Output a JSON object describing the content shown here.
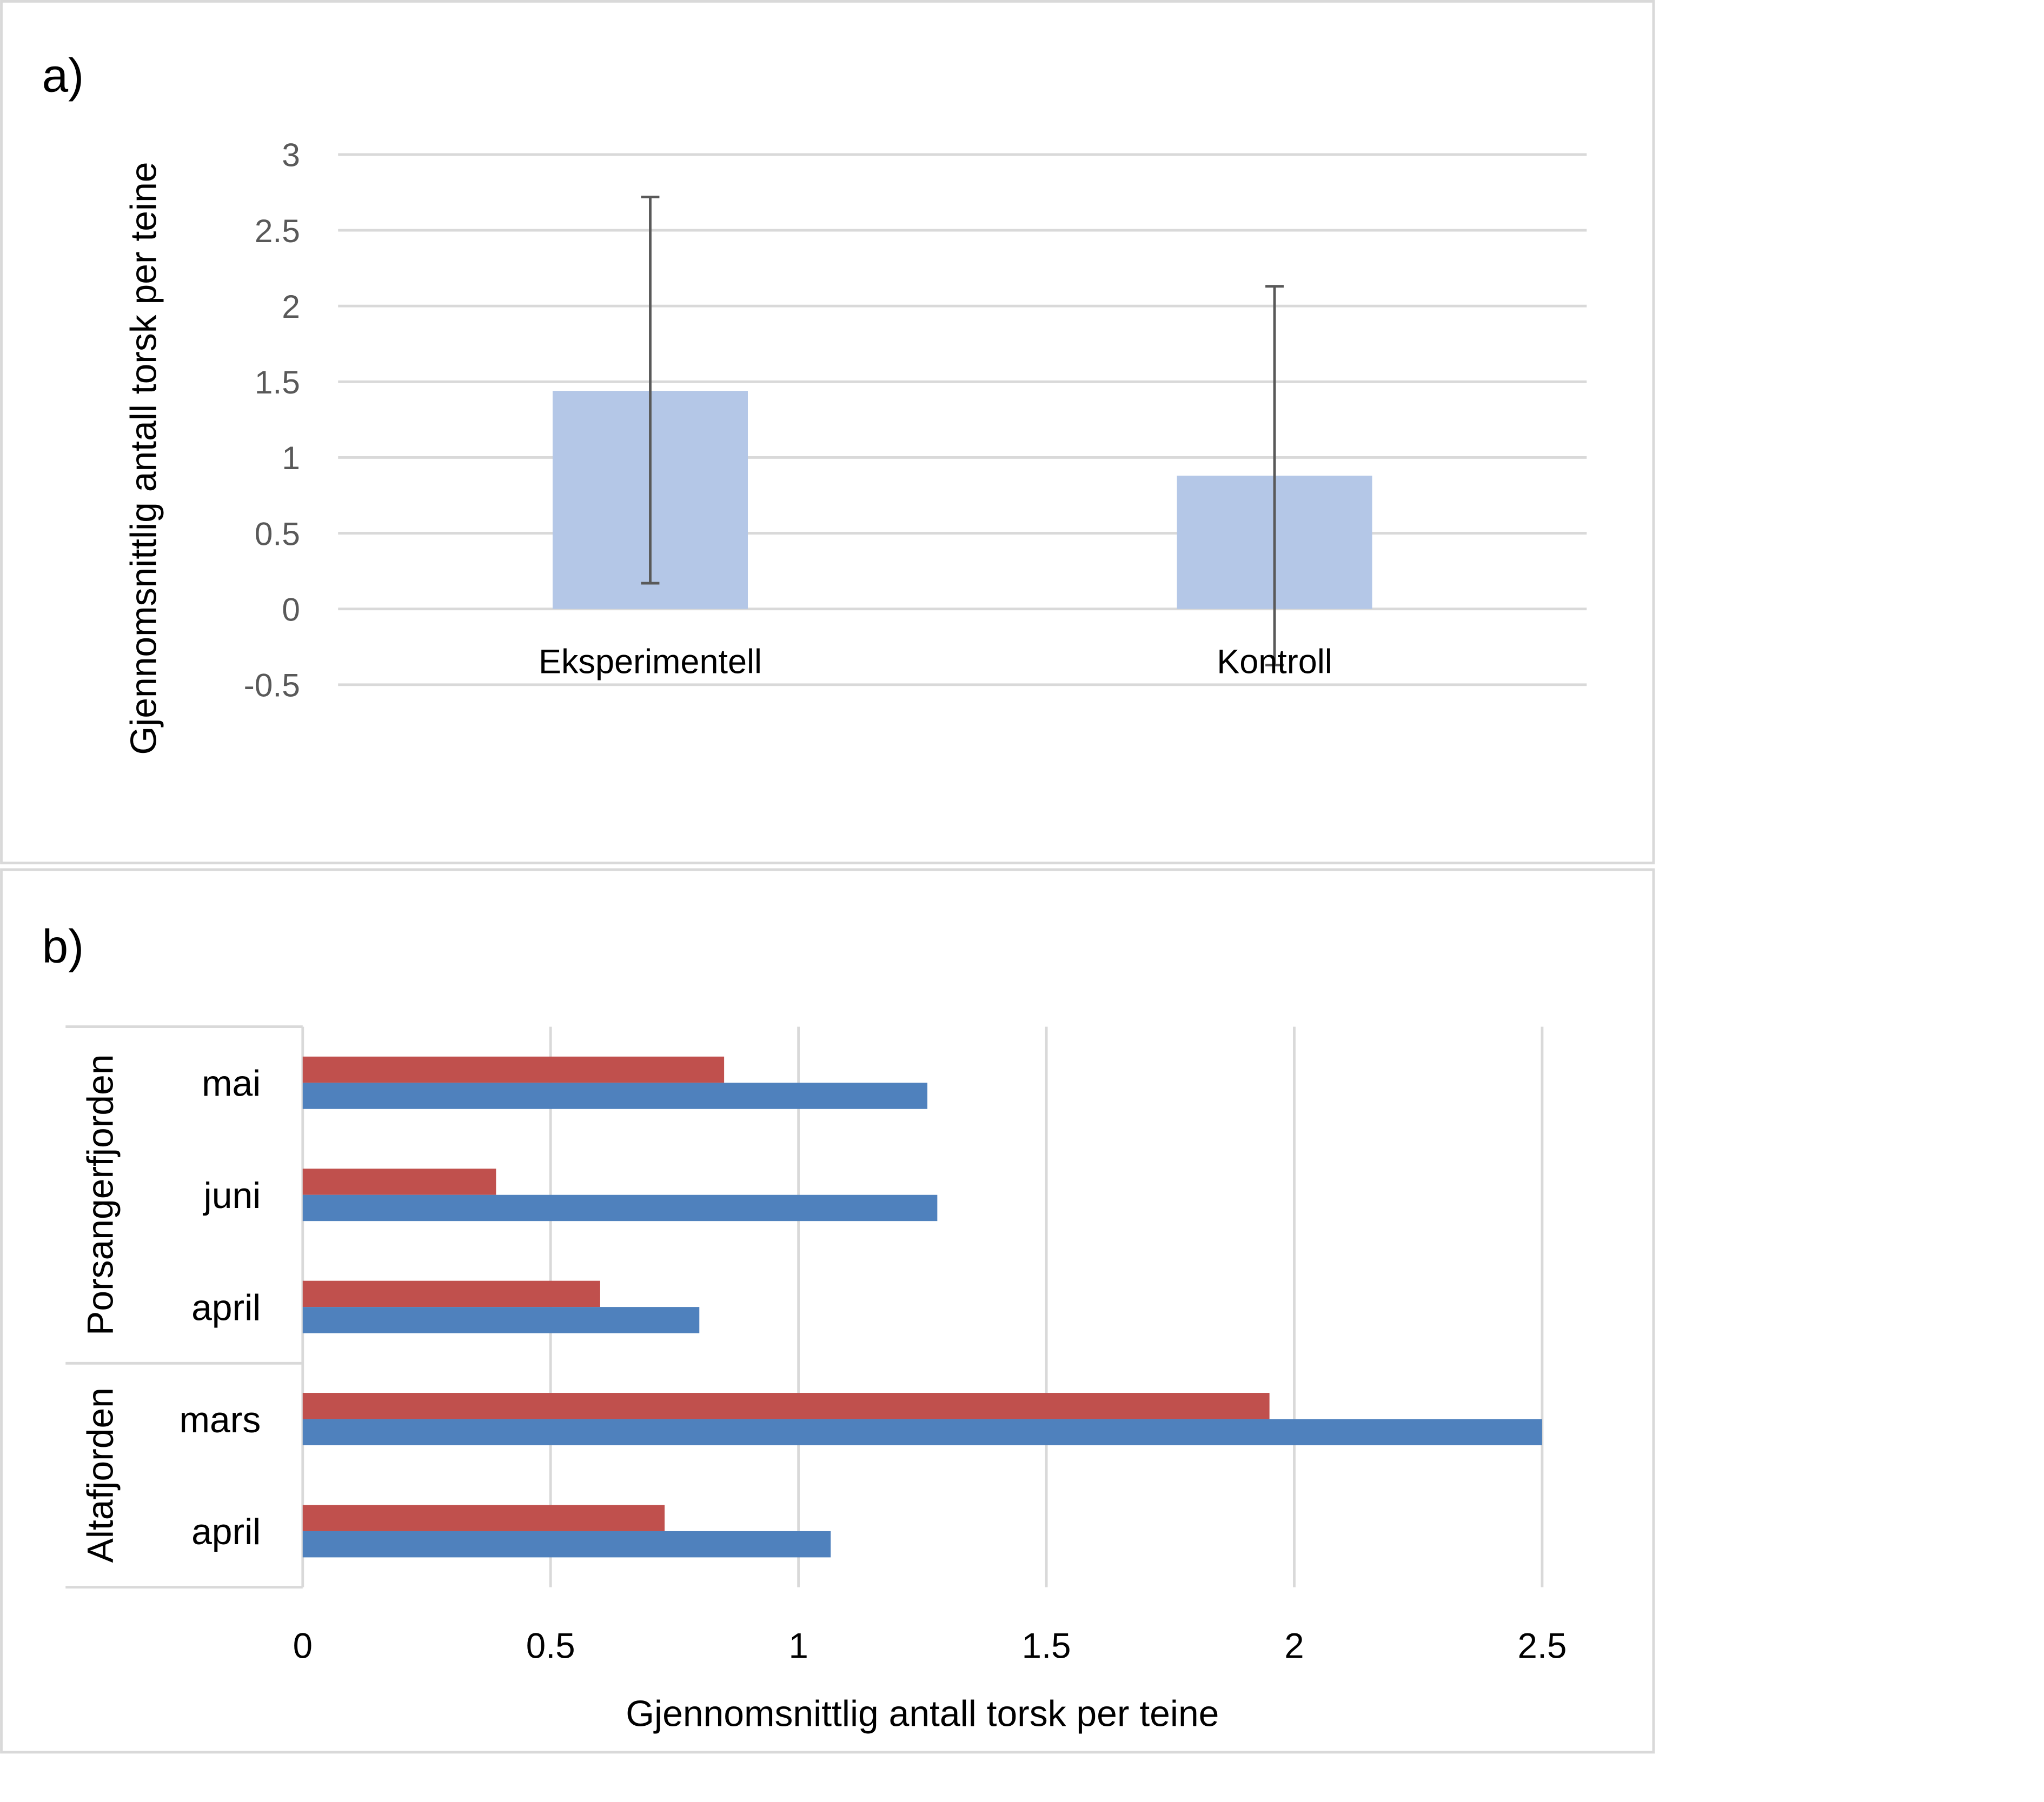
{
  "chart_data": [
    {
      "panel_label": "a)",
      "type": "bar",
      "categories": [
        "Eksperimentell",
        "Kontroll"
      ],
      "values": [
        1.44,
        0.88
      ],
      "error_bars": [
        [
          0.17,
          2.72
        ],
        [
          -0.37,
          2.13
        ]
      ],
      "ylabel": "Gjennomsnittlig antall torsk per teine",
      "ylim": [
        -0.5,
        3
      ],
      "yticks": [
        "-0.5",
        "0",
        "0.5",
        "1",
        "1.5",
        "2",
        "2.5",
        "3"
      ],
      "ytick_values": [
        -0.5,
        0,
        0.5,
        1,
        1.5,
        2,
        2.5,
        3
      ],
      "grid": true,
      "bar_color": "#b4c7e7",
      "error_color": "#595959"
    },
    {
      "panel_label": "b)",
      "type": "bar",
      "orientation": "horizontal",
      "groups": [
        {
          "name": "Porsangerfjorden",
          "categories": [
            "mai",
            "juni",
            "april"
          ]
        },
        {
          "name": "Altafjorden",
          "categories": [
            "mars",
            "april"
          ]
        }
      ],
      "series": [
        {
          "color": "#c0504d",
          "values": [
            0.85,
            0.39,
            0.6,
            1.95,
            0.73
          ]
        },
        {
          "color": "#4f81bd",
          "values": [
            1.26,
            1.28,
            0.8,
            2.5,
            1.065
          ]
        }
      ],
      "xlabel": "Gjennomsnittlig antall torsk per teine",
      "xlim": [
        0,
        2.5
      ],
      "xticks": [
        "0",
        "0.5",
        "1",
        "1.5",
        "2",
        "2.5"
      ],
      "xtick_values": [
        0,
        0.5,
        1,
        1.5,
        2,
        2.5
      ],
      "grid": true
    }
  ]
}
